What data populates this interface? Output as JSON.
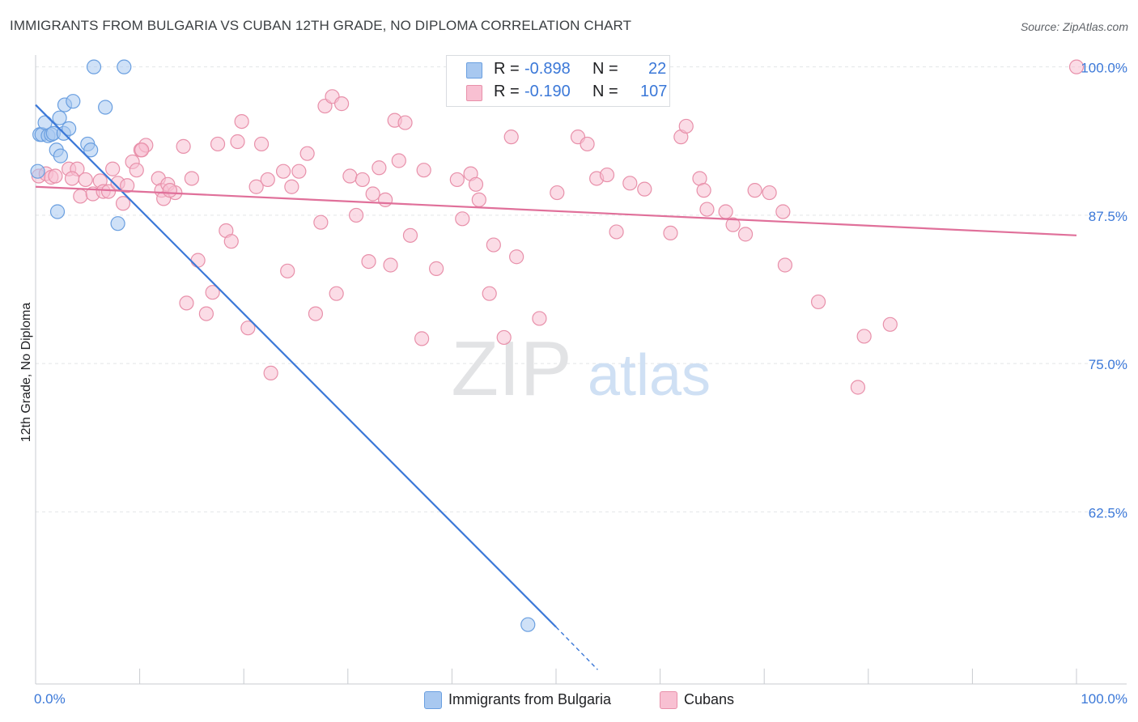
{
  "header": {
    "title": "IMMIGRANTS FROM BULGARIA VS CUBAN 12TH GRADE, NO DIPLOMA CORRELATION CHART",
    "source": "Source: ZipAtlas.com"
  },
  "watermark": {
    "zip": "ZIP",
    "atlas": "atlas"
  },
  "legend": {
    "rows": [
      {
        "r_label": "R =",
        "r_value": "-0.898",
        "n_label": "N =",
        "n_value": "22",
        "color": "#a8c8f0",
        "border": "#6a9fe0"
      },
      {
        "r_label": "R =",
        "r_value": "-0.190",
        "n_label": "N =",
        "n_value": "107",
        "color": "#f8c0d2",
        "border": "#e890aa"
      }
    ]
  },
  "bottom_legend": [
    {
      "label": "Immigrants from Bulgaria",
      "color": "#a8c8f0",
      "border": "#6a9fe0"
    },
    {
      "label": "Cubans",
      "color": "#f8c0d2",
      "border": "#e890aa"
    }
  ],
  "chart_data": {
    "type": "scatter",
    "title": "IMMIGRANTS FROM BULGARIA VS CUBAN 12TH GRADE, NO DIPLOMA CORRELATION CHART",
    "xlabel": "",
    "ylabel": "12th Grade, No Diploma",
    "xlim": [
      0,
      100
    ],
    "ylim": [
      48,
      101
    ],
    "x_tick_labels": [
      "0.0%",
      "100.0%"
    ],
    "y_ticks": [
      62.5,
      75.0,
      87.5,
      100.0
    ],
    "y_tick_labels": [
      "62.5%",
      "75.0%",
      "87.5%",
      "100.0%"
    ],
    "grid": true,
    "series": [
      {
        "name": "Immigrants from Bulgaria",
        "color": "#6a9fe0",
        "fill": "#a8c8f0",
        "trend_color": "#3b78d8",
        "trend": {
          "x0": 0,
          "y0": 96.8,
          "x1": 50,
          "y1": 52.8,
          "dash_to_x": 54,
          "dash_to_y": 49.2
        },
        "points": [
          [
            0.2,
            91.2
          ],
          [
            0.4,
            94.3
          ],
          [
            0.6,
            94.3
          ],
          [
            0.9,
            95.3
          ],
          [
            1.2,
            94.2
          ],
          [
            1.5,
            94.3
          ],
          [
            1.7,
            94.4
          ],
          [
            2.0,
            93.0
          ],
          [
            2.1,
            87.8
          ],
          [
            2.3,
            95.7
          ],
          [
            2.4,
            92.5
          ],
          [
            2.7,
            94.4
          ],
          [
            2.8,
            96.8
          ],
          [
            3.2,
            94.8
          ],
          [
            3.6,
            97.1
          ],
          [
            5.0,
            93.5
          ],
          [
            5.3,
            93.0
          ],
          [
            5.6,
            100.0
          ],
          [
            6.7,
            96.6
          ],
          [
            7.9,
            86.8
          ],
          [
            8.5,
            100.0
          ],
          [
            47.3,
            53.0
          ]
        ]
      },
      {
        "name": "Cubans",
        "color": "#e890aa",
        "fill": "#f8c0d2",
        "trend_color": "#e0709a",
        "trend": {
          "x0": 0,
          "y0": 89.9,
          "x1": 100,
          "y1": 85.8
        },
        "points": [
          [
            0.3,
            90.8
          ],
          [
            1.0,
            91.0
          ],
          [
            1.5,
            90.7
          ],
          [
            1.9,
            90.8
          ],
          [
            3.2,
            91.4
          ],
          [
            4.0,
            91.4
          ],
          [
            3.5,
            90.6
          ],
          [
            4.3,
            89.1
          ],
          [
            4.8,
            90.5
          ],
          [
            5.5,
            89.3
          ],
          [
            6.2,
            90.4
          ],
          [
            6.5,
            89.5
          ],
          [
            7.0,
            89.5
          ],
          [
            7.4,
            91.4
          ],
          [
            7.9,
            90.2
          ],
          [
            8.4,
            88.5
          ],
          [
            8.8,
            90.0
          ],
          [
            9.3,
            92.0
          ],
          [
            9.7,
            91.3
          ],
          [
            10.1,
            93.0
          ],
          [
            10.6,
            93.4
          ],
          [
            11.8,
            90.6
          ],
          [
            12.1,
            89.6
          ],
          [
            12.3,
            88.9
          ],
          [
            12.7,
            90.1
          ],
          [
            13.4,
            89.4
          ],
          [
            14.2,
            93.3
          ],
          [
            15.0,
            90.6
          ],
          [
            14.5,
            80.1
          ],
          [
            15.6,
            83.7
          ],
          [
            16.4,
            79.2
          ],
          [
            17.0,
            81.0
          ],
          [
            17.5,
            93.5
          ],
          [
            18.3,
            86.2
          ],
          [
            18.8,
            85.3
          ],
          [
            19.4,
            93.7
          ],
          [
            19.8,
            95.4
          ],
          [
            20.4,
            78.0
          ],
          [
            21.2,
            89.9
          ],
          [
            21.7,
            93.5
          ],
          [
            22.3,
            90.5
          ],
          [
            22.6,
            74.2
          ],
          [
            23.8,
            91.2
          ],
          [
            24.2,
            82.8
          ],
          [
            24.6,
            89.9
          ],
          [
            25.3,
            91.2
          ],
          [
            26.1,
            92.7
          ],
          [
            26.9,
            79.2
          ],
          [
            27.4,
            86.9
          ],
          [
            27.8,
            96.7
          ],
          [
            28.5,
            97.5
          ],
          [
            28.9,
            80.9
          ],
          [
            29.4,
            96.9
          ],
          [
            30.2,
            90.8
          ],
          [
            30.8,
            87.5
          ],
          [
            31.4,
            90.5
          ],
          [
            32.0,
            83.6
          ],
          [
            32.4,
            89.3
          ],
          [
            33.0,
            91.5
          ],
          [
            33.6,
            88.8
          ],
          [
            34.1,
            83.3
          ],
          [
            34.5,
            95.5
          ],
          [
            34.9,
            92.1
          ],
          [
            35.5,
            95.3
          ],
          [
            36.0,
            85.8
          ],
          [
            37.1,
            77.1
          ],
          [
            37.3,
            91.3
          ],
          [
            40.5,
            90.5
          ],
          [
            41.0,
            87.2
          ],
          [
            41.8,
            91.0
          ],
          [
            42.3,
            90.1
          ],
          [
            42.6,
            88.8
          ],
          [
            43.6,
            80.9
          ],
          [
            44.0,
            85.0
          ],
          [
            45.0,
            77.2
          ],
          [
            45.7,
            94.1
          ],
          [
            46.2,
            84.0
          ],
          [
            48.4,
            78.8
          ],
          [
            50.1,
            89.4
          ],
          [
            52.1,
            94.1
          ],
          [
            53.0,
            93.5
          ],
          [
            53.9,
            90.6
          ],
          [
            54.9,
            90.9
          ],
          [
            55.8,
            86.1
          ],
          [
            57.1,
            90.2
          ],
          [
            58.5,
            89.7
          ],
          [
            61.0,
            86.0
          ],
          [
            62.0,
            94.1
          ],
          [
            62.5,
            95.0
          ],
          [
            63.8,
            90.6
          ],
          [
            64.2,
            89.6
          ],
          [
            64.5,
            88.0
          ],
          [
            66.3,
            87.8
          ],
          [
            67.0,
            86.7
          ],
          [
            68.2,
            85.9
          ],
          [
            69.1,
            89.6
          ],
          [
            70.5,
            89.4
          ],
          [
            71.8,
            87.8
          ],
          [
            72.0,
            83.3
          ],
          [
            75.2,
            80.2
          ],
          [
            79.0,
            73.0
          ],
          [
            79.6,
            77.3
          ],
          [
            82.1,
            78.3
          ],
          [
            100.0,
            100.0
          ],
          [
            10.2,
            93.0
          ],
          [
            38.5,
            83.0
          ],
          [
            12.9,
            89.6
          ]
        ]
      }
    ]
  }
}
